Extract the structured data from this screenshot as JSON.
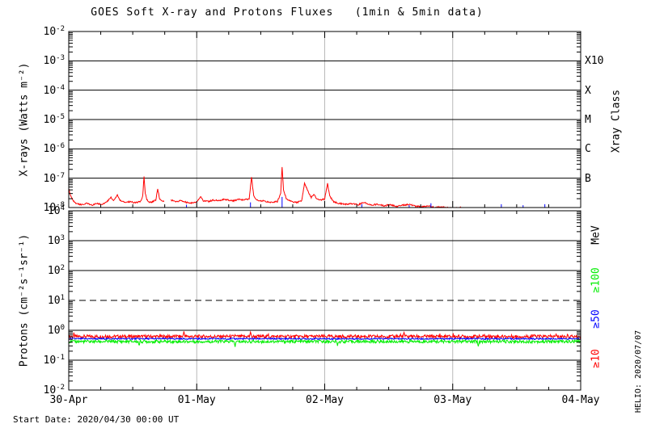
{
  "header": {
    "title": "GOES Soft X-ray and Protons Fluxes   (1min & 5min data)"
  },
  "footer": {
    "start_date": "Start Date: 2020/04/30 00:00 UT",
    "generated": "HELIO: 2020/07/07"
  },
  "colors": {
    "xray_long": "#ff0000",
    "xray_short": "#0000ff",
    "p_gte10": "#ff0000",
    "p_gte50": "#0000ff",
    "p_gte100": "#00ee00",
    "day_grid": "#b9b9b9",
    "axis": "#000000",
    "background": "#ffffff"
  },
  "xaxis": {
    "tick_labels": [
      "30-Apr",
      "01-May",
      "02-May",
      "03-May",
      "04-May"
    ],
    "range_days": [
      0,
      4
    ],
    "minor_ticks_per_day": 4,
    "day_gridlines": [
      1,
      2,
      3
    ]
  },
  "chart_data": [
    {
      "type": "line",
      "panel": "xray",
      "ylabel": "X-rays (Watts m⁻²)",
      "ylabel_right": "Xray Class",
      "yscale": "log",
      "ylim": [
        1e-08,
        0.01
      ],
      "ytick_exponents": [
        "-2",
        "-3",
        "-4",
        "-5",
        "-6",
        "-7",
        "-8"
      ],
      "class_labels": [
        {
          "label": "X10",
          "exp": -3
        },
        {
          "label": "X",
          "exp": -4
        },
        {
          "label": "M",
          "exp": -5
        },
        {
          "label": "C",
          "exp": -6
        },
        {
          "label": "B",
          "exp": -7
        }
      ],
      "series": [
        {
          "name": "xray-long-1min",
          "color": "#ff0000",
          "noise_decades": 0.025,
          "segments": [
            [
              [
                0.0,
                4.5e-08
              ],
              [
                0.01,
                3e-08
              ],
              [
                0.03,
                1.8e-08
              ],
              [
                0.06,
                1.35e-08
              ],
              [
                0.1,
                1.25e-08
              ],
              [
                0.14,
                1.4e-08
              ],
              [
                0.18,
                1.2e-08
              ],
              [
                0.22,
                1.35e-08
              ],
              [
                0.26,
                1.3e-08
              ],
              [
                0.3,
                1.6e-08
              ],
              [
                0.33,
                2.3e-08
              ],
              [
                0.35,
                1.7e-08
              ],
              [
                0.38,
                2.6e-08
              ],
              [
                0.4,
                1.8e-08
              ],
              [
                0.44,
                1.5e-08
              ],
              [
                0.48,
                1.6e-08
              ],
              [
                0.52,
                1.45e-08
              ],
              [
                0.56,
                1.6e-08
              ],
              [
                0.578,
                2.5e-08
              ],
              [
                0.588,
                1.15e-07
              ],
              [
                0.598,
                3e-08
              ],
              [
                0.61,
                1.9e-08
              ],
              [
                0.63,
                1.5e-08
              ],
              [
                0.66,
                1.6e-08
              ],
              [
                0.68,
                1.8e-08
              ],
              [
                0.695,
                4.2e-08
              ],
              [
                0.71,
                2e-08
              ],
              [
                0.73,
                1.7e-08
              ],
              [
                0.745,
                1.6e-08
              ]
            ],
            [
              [
                0.8,
                1.8e-08
              ],
              [
                0.84,
                1.6e-08
              ],
              [
                0.88,
                1.7e-08
              ],
              [
                0.92,
                1.5e-08
              ],
              [
                0.96,
                1.4e-08
              ],
              [
                1.0,
                1.55e-08
              ],
              [
                1.03,
                2.4e-08
              ],
              [
                1.05,
                1.7e-08
              ],
              [
                1.09,
                1.6e-08
              ],
              [
                1.13,
                1.8e-08
              ],
              [
                1.17,
                1.7e-08
              ],
              [
                1.21,
                1.9e-08
              ],
              [
                1.25,
                1.8e-08
              ],
              [
                1.29,
                1.7e-08
              ],
              [
                1.33,
                1.9e-08
              ],
              [
                1.37,
                1.8e-08
              ],
              [
                1.41,
                2e-08
              ],
              [
                1.428,
                1.1e-07
              ],
              [
                1.445,
                2.5e-08
              ],
              [
                1.47,
                1.8e-08
              ],
              [
                1.51,
                1.7e-08
              ],
              [
                1.55,
                1.6e-08
              ],
              [
                1.59,
                1.5e-08
              ],
              [
                1.63,
                1.6e-08
              ],
              [
                1.656,
                3e-08
              ],
              [
                1.667,
                2.4e-07
              ],
              [
                1.678,
                4e-08
              ],
              [
                1.7,
                2e-08
              ],
              [
                1.74,
                1.6e-08
              ],
              [
                1.78,
                1.5e-08
              ],
              [
                1.82,
                1.7e-08
              ],
              [
                1.842,
                6.8e-08
              ],
              [
                1.86,
                4.5e-08
              ],
              [
                1.875,
                3.2e-08
              ],
              [
                1.895,
                2.2e-08
              ],
              [
                1.915,
                2.9e-08
              ],
              [
                1.935,
                2e-08
              ],
              [
                1.97,
                1.8e-08
              ],
              [
                2.0,
                2e-08
              ],
              [
                2.022,
                6.5e-08
              ],
              [
                2.04,
                2.4e-08
              ],
              [
                2.07,
                1.6e-08
              ],
              [
                2.11,
                1.4e-08
              ],
              [
                2.16,
                1.3e-08
              ],
              [
                2.21,
                1.35e-08
              ],
              [
                2.26,
                1.25e-08
              ],
              [
                2.31,
                1.5e-08
              ],
              [
                2.36,
                1.2e-08
              ],
              [
                2.41,
                1.3e-08
              ],
              [
                2.46,
                1.15e-08
              ],
              [
                2.51,
                1.25e-08
              ],
              [
                2.56,
                1.1e-08
              ],
              [
                2.61,
                1.2e-08
              ],
              [
                2.66,
                1.3e-08
              ],
              [
                2.71,
                1.1e-08
              ],
              [
                2.76,
                1.05e-08
              ],
              [
                2.81,
                1.15e-08
              ],
              [
                2.86,
                1e-08
              ],
              [
                2.91,
                1.05e-08
              ],
              [
                2.96,
                1e-08
              ],
              [
                3.01,
                9.5e-09
              ],
              [
                3.06,
                1e-08
              ],
              [
                3.11,
                9e-09
              ],
              [
                3.16,
                9.5e-09
              ],
              [
                3.21,
                8.5e-09
              ],
              [
                3.26,
                9e-09
              ],
              [
                3.31,
                8.5e-09
              ],
              [
                3.36,
                9.5e-09
              ],
              [
                3.41,
                8.5e-09
              ],
              [
                3.46,
                8e-09
              ],
              [
                3.51,
                8.5e-09
              ],
              [
                3.56,
                8e-09
              ],
              [
                3.61,
                9e-09
              ],
              [
                3.66,
                8e-09
              ],
              [
                3.71,
                8.5e-09
              ],
              [
                3.76,
                8e-09
              ],
              [
                3.81,
                9e-09
              ],
              [
                3.86,
                8.5e-09
              ],
              [
                3.91,
                8e-09
              ],
              [
                3.96,
                8.5e-09
              ],
              [
                4.0,
                8e-09
              ]
            ]
          ]
        },
        {
          "name": "xray-short-1min",
          "color": "#0000ff",
          "marks": [
            [
              0.92,
              1.25e-08
            ],
            [
              1.42,
              1.5e-08
            ],
            [
              1.667,
              2.3e-08
            ],
            [
              2.29,
              1.3e-08
            ],
            [
              2.66,
              1.2e-08
            ],
            [
              2.83,
              1.4e-08
            ],
            [
              3.38,
              1.3e-08
            ],
            [
              3.55,
              1.2e-08
            ],
            [
              3.72,
              1.3e-08
            ]
          ]
        }
      ]
    },
    {
      "type": "line",
      "panel": "protons",
      "ylabel": "Protons (cm⁻²s⁻¹sr⁻¹)",
      "ylabel_right": "MeV",
      "yscale": "log",
      "ylim": [
        0.01,
        10000.0
      ],
      "ytick_exponents": [
        "4",
        "3",
        "2",
        "1",
        "0",
        "-1",
        "-2"
      ],
      "threshold": {
        "value": 10,
        "style": "dashed"
      },
      "legend": [
        {
          "label": "≥100",
          "color": "#00ee00"
        },
        {
          "label": "≥50",
          "color": "#0000ff"
        },
        {
          "label": "≥10",
          "color": "#ff0000"
        }
      ],
      "series": [
        {
          "name": "protons-gte10MeV",
          "color": "#ff0000",
          "baseline": 0.62,
          "noise_decades": 0.055,
          "spikes": [
            [
              0.9,
              0.92
            ],
            [
              1.42,
              0.88
            ],
            [
              2.62,
              0.85
            ]
          ]
        },
        {
          "name": "protons-gte50MeV",
          "color": "#0000ff",
          "baseline": 0.52,
          "noise_decades": 0.025,
          "spikes": []
        },
        {
          "name": "protons-gte100MeV",
          "color": "#00ee00",
          "baseline": 0.42,
          "noise_decades": 0.05,
          "spikes": [
            [
              0.55,
              0.3
            ],
            [
              1.3,
              0.28
            ],
            [
              2.1,
              0.3
            ],
            [
              3.2,
              0.29
            ]
          ]
        }
      ]
    }
  ]
}
